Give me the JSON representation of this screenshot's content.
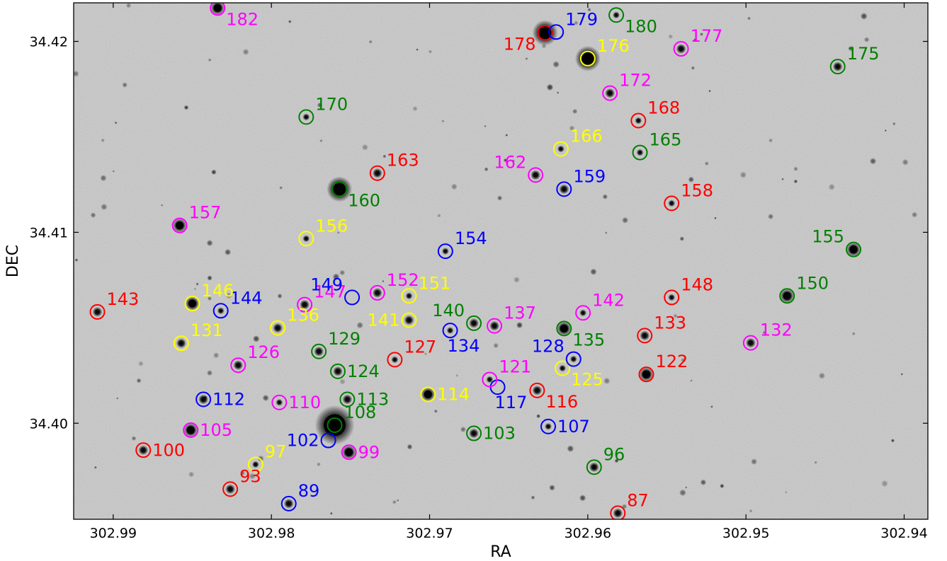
{
  "chart_data": {
    "type": "scatter",
    "xlabel": "RA",
    "ylabel": "DEC",
    "xlim": [
      302.9925,
      302.9385
    ],
    "ylim": [
      34.39497,
      34.42202
    ],
    "x_reversed": true,
    "x_ticks": [
      302.99,
      302.98,
      302.97,
      302.96,
      302.95,
      302.94
    ],
    "x_tick_labels": [
      "302.99",
      "302.98",
      "302.97",
      "302.96",
      "302.95",
      "302.94"
    ],
    "y_ticks": [
      34.4,
      34.41,
      34.42
    ],
    "y_tick_labels": [
      "34.40",
      "34.41",
      "34.42"
    ],
    "grid": false,
    "legend": "none",
    "background": "grayscale star-field image",
    "colors": {
      "red": "#ff0000",
      "green": "#008000",
      "blue": "#0000ff",
      "yellow": "#ffff00",
      "magenta": "#ff00ff"
    },
    "markers": [
      {
        "id": "87",
        "ra": 302.9581,
        "dec": 34.39529,
        "color": "red",
        "label_pos": "upper-right",
        "star": 2
      },
      {
        "id": "89",
        "ra": 302.9789,
        "dec": 34.39579,
        "color": "blue",
        "label_pos": "upper-right",
        "star": 2
      },
      {
        "id": "93",
        "ra": 302.9826,
        "dec": 34.39655,
        "color": "red",
        "label_pos": "upper-right",
        "star": 2
      },
      {
        "id": "96",
        "ra": 302.9596,
        "dec": 34.3977,
        "color": "green",
        "label_pos": "upper-right",
        "star": 2
      },
      {
        "id": "97",
        "ra": 302.981,
        "dec": 34.39784,
        "color": "yellow",
        "label_pos": "upper-right",
        "star": 1
      },
      {
        "id": "99",
        "ra": 302.9751,
        "dec": 34.39848,
        "color": "magenta",
        "label_pos": "right",
        "star": 3
      },
      {
        "id": "100",
        "ra": 302.9881,
        "dec": 34.39859,
        "color": "red",
        "label_pos": "right",
        "star": 2
      },
      {
        "id": "102",
        "ra": 302.9764,
        "dec": 34.3991,
        "color": "blue",
        "label_pos": "left",
        "star": 0
      },
      {
        "id": "103",
        "ra": 302.9672,
        "dec": 34.39947,
        "color": "green",
        "label_pos": "right",
        "star": 2
      },
      {
        "id": "105",
        "ra": 302.9851,
        "dec": 34.39964,
        "color": "magenta",
        "label_pos": "right",
        "star": 3
      },
      {
        "id": "107",
        "ra": 302.9625,
        "dec": 34.39983,
        "color": "blue",
        "label_pos": "right",
        "star": 1
      },
      {
        "id": "108",
        "ra": 302.976,
        "dec": 34.3999,
        "color": "green",
        "label_pos": "upper-right",
        "star": 4
      },
      {
        "id": "110",
        "ra": 302.9795,
        "dec": 34.40109,
        "color": "magenta",
        "label_pos": "right",
        "star": 1
      },
      {
        "id": "112",
        "ra": 302.9843,
        "dec": 34.40125,
        "color": "blue",
        "label_pos": "right",
        "star": 2
      },
      {
        "id": "113",
        "ra": 302.9752,
        "dec": 34.40125,
        "color": "green",
        "label_pos": "right",
        "star": 2
      },
      {
        "id": "114",
        "ra": 302.9701,
        "dec": 34.40151,
        "color": "yellow",
        "label_pos": "right",
        "star": 3
      },
      {
        "id": "116",
        "ra": 302.9632,
        "dec": 34.40172,
        "color": "red",
        "label_pos": "lower-right",
        "star": 2
      },
      {
        "id": "117",
        "ra": 302.9657,
        "dec": 34.40189,
        "color": "blue",
        "label_pos": "below",
        "star": 0
      },
      {
        "id": "121",
        "ra": 302.9662,
        "dec": 34.40229,
        "color": "magenta",
        "label_pos": "upper-right",
        "star": 1
      },
      {
        "id": "122",
        "ra": 302.9563,
        "dec": 34.40256,
        "color": "red",
        "label_pos": "upper-right",
        "star": 3
      },
      {
        "id": "124",
        "ra": 302.9758,
        "dec": 34.40272,
        "color": "green",
        "label_pos": "right",
        "star": 2
      },
      {
        "id": "125",
        "ra": 302.9616,
        "dec": 34.40288,
        "color": "yellow",
        "label_pos": "lower-right",
        "star": 1
      },
      {
        "id": "126",
        "ra": 302.9821,
        "dec": 34.40304,
        "color": "magenta",
        "label_pos": "upper-right",
        "star": 2
      },
      {
        "id": "127",
        "ra": 302.9722,
        "dec": 34.40333,
        "color": "red",
        "label_pos": "upper-right",
        "star": 1
      },
      {
        "id": "128",
        "ra": 302.9609,
        "dec": 34.40336,
        "color": "blue",
        "label_pos": "upper-left",
        "star": 1
      },
      {
        "id": "129",
        "ra": 302.977,
        "dec": 34.40376,
        "color": "green",
        "label_pos": "upper-right",
        "star": 2
      },
      {
        "id": "131",
        "ra": 302.9857,
        "dec": 34.40419,
        "color": "yellow",
        "label_pos": "upper-right",
        "star": 2
      },
      {
        "id": "132",
        "ra": 302.9497,
        "dec": 34.40421,
        "color": "magenta",
        "label_pos": "upper-right",
        "star": 2
      },
      {
        "id": "133",
        "ra": 302.9564,
        "dec": 34.40459,
        "color": "red",
        "label_pos": "upper-right",
        "star": 2
      },
      {
        "id": "134",
        "ra": 302.9687,
        "dec": 34.40486,
        "color": "blue",
        "label_pos": "below",
        "star": 1
      },
      {
        "id": "135",
        "ra": 302.9615,
        "dec": 34.40496,
        "color": "green",
        "label_pos": "lower-right",
        "star": 3
      },
      {
        "id": "136",
        "ra": 302.9796,
        "dec": 34.40499,
        "color": "yellow",
        "label_pos": "upper-right",
        "star": 2
      },
      {
        "id": "137",
        "ra": 302.9659,
        "dec": 34.4051,
        "color": "magenta",
        "label_pos": "upper-right",
        "star": 2
      },
      {
        "id": "140",
        "ra": 302.9672,
        "dec": 34.40524,
        "color": "green",
        "label_pos": "upper-left",
        "star": 2
      },
      {
        "id": "141",
        "ra": 302.9713,
        "dec": 34.4054,
        "color": "yellow",
        "label_pos": "left",
        "star": 2
      },
      {
        "id": "142",
        "ra": 302.9603,
        "dec": 34.40578,
        "color": "magenta",
        "label_pos": "upper-right",
        "star": 1
      },
      {
        "id": "143",
        "ra": 302.991,
        "dec": 34.40583,
        "color": "red",
        "label_pos": "upper-right",
        "star": 2
      },
      {
        "id": "144",
        "ra": 302.9832,
        "dec": 34.40589,
        "color": "blue",
        "label_pos": "upper-right",
        "star": 1
      },
      {
        "id": "146",
        "ra": 302.985,
        "dec": 34.40627,
        "color": "yellow",
        "label_pos": "upper-right",
        "star": 3
      },
      {
        "id": "147",
        "ra": 302.9779,
        "dec": 34.40621,
        "color": "magenta",
        "label_pos": "upper-right",
        "star": 2
      },
      {
        "id": "148",
        "ra": 302.9547,
        "dec": 34.40659,
        "color": "red",
        "label_pos": "upper-right",
        "star": 1
      },
      {
        "id": "149",
        "ra": 302.9749,
        "dec": 34.40659,
        "color": "blue",
        "label_pos": "upper-left",
        "star": 0
      },
      {
        "id": "150",
        "ra": 302.9474,
        "dec": 34.40667,
        "color": "green",
        "label_pos": "upper-right",
        "star": 3
      },
      {
        "id": "151",
        "ra": 302.9713,
        "dec": 34.40667,
        "color": "yellow",
        "label_pos": "upper-right",
        "star": 1
      },
      {
        "id": "152",
        "ra": 302.9733,
        "dec": 34.40683,
        "color": "magenta",
        "label_pos": "upper-right",
        "star": 2
      },
      {
        "id": "154",
        "ra": 302.969,
        "dec": 34.40901,
        "color": "blue",
        "label_pos": "upper-right",
        "star": 1
      },
      {
        "id": "155",
        "ra": 302.9432,
        "dec": 34.4091,
        "color": "green",
        "label_pos": "upper-left",
        "star": 3
      },
      {
        "id": "156",
        "ra": 302.9778,
        "dec": 34.40967,
        "color": "yellow",
        "label_pos": "upper-right",
        "star": 1
      },
      {
        "id": "157",
        "ra": 302.9858,
        "dec": 34.41036,
        "color": "magenta",
        "label_pos": "upper-right",
        "star": 3
      },
      {
        "id": "158",
        "ra": 302.9547,
        "dec": 34.41152,
        "color": "red",
        "label_pos": "upper-right",
        "star": 1
      },
      {
        "id": "159",
        "ra": 302.9615,
        "dec": 34.41226,
        "color": "blue",
        "label_pos": "upper-right",
        "star": 2
      },
      {
        "id": "160",
        "ra": 302.9757,
        "dec": 34.41226,
        "color": "green",
        "label_pos": "lower-right",
        "star": 5
      },
      {
        "id": "162",
        "ra": 302.9633,
        "dec": 34.413,
        "color": "magenta",
        "label_pos": "upper-left",
        "star": 2
      },
      {
        "id": "163",
        "ra": 302.9733,
        "dec": 34.4131,
        "color": "red",
        "label_pos": "upper-right",
        "star": 2
      },
      {
        "id": "165",
        "ra": 302.9567,
        "dec": 34.41418,
        "color": "green",
        "label_pos": "upper-right",
        "star": 1
      },
      {
        "id": "166",
        "ra": 302.9617,
        "dec": 34.41437,
        "color": "yellow",
        "label_pos": "upper-right",
        "star": 1
      },
      {
        "id": "168",
        "ra": 302.9568,
        "dec": 34.41585,
        "color": "red",
        "label_pos": "upper-right",
        "star": 1
      },
      {
        "id": "170",
        "ra": 302.9778,
        "dec": 34.41604,
        "color": "green",
        "label_pos": "upper-right",
        "star": 1
      },
      {
        "id": "172",
        "ra": 302.9586,
        "dec": 34.41729,
        "color": "magenta",
        "label_pos": "upper-right",
        "star": 2
      },
      {
        "id": "175",
        "ra": 302.9442,
        "dec": 34.41868,
        "color": "green",
        "label_pos": "upper-right",
        "star": 2
      },
      {
        "id": "176",
        "ra": 302.96,
        "dec": 34.4191,
        "color": "yellow",
        "label_pos": "upper-right",
        "star": 5
      },
      {
        "id": "177",
        "ra": 302.9541,
        "dec": 34.41961,
        "color": "magenta",
        "label_pos": "upper-right",
        "star": 2
      },
      {
        "id": "178",
        "ra": 302.9627,
        "dec": 34.42045,
        "color": "red",
        "label_pos": "lower-left",
        "star": 5
      },
      {
        "id": "179",
        "ra": 302.962,
        "dec": 34.42049,
        "color": "blue",
        "label_pos": "upper-right",
        "star": 0
      },
      {
        "id": "180",
        "ra": 302.9582,
        "dec": 34.42138,
        "color": "green",
        "label_pos": "lower-right",
        "star": 1
      },
      {
        "id": "182",
        "ra": 302.9834,
        "dec": 34.42175,
        "color": "magenta",
        "label_pos": "lower-right",
        "star": 3
      }
    ]
  }
}
